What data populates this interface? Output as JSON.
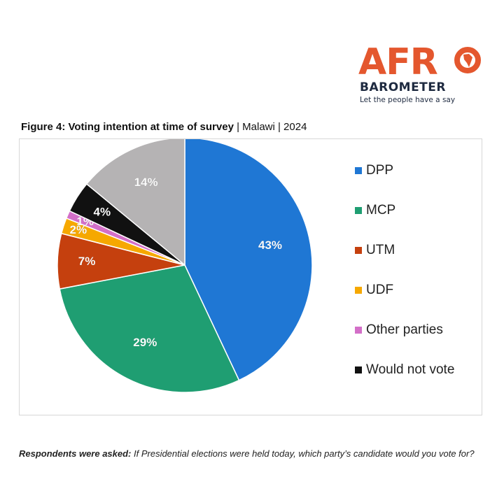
{
  "logo": {
    "main_prefix": "AFR",
    "sub": "BAROMETER",
    "tagline": "Let the people have a say",
    "color": "#e4572e",
    "sub_color": "#1e2a40"
  },
  "figure": {
    "title_bold": "Figure 4: Voting intention at time of survey",
    "title_rest": " | Malawi | 2024"
  },
  "chart_data": {
    "type": "pie",
    "title": "Figure 4: Voting intention at time of survey | Malawi | 2024",
    "legend_position": "right",
    "start": "top, clockwise",
    "slices": [
      {
        "label": "DPP",
        "value": 43,
        "display": "43%",
        "color": "#1f77d4"
      },
      {
        "label": "MCP",
        "value": 29,
        "display": "29%",
        "color": "#1f9e72"
      },
      {
        "label": "UTM",
        "value": 7,
        "display": "7%",
        "color": "#c5400e"
      },
      {
        "label": "UDF",
        "value": 2,
        "display": "2%",
        "color": "#f6a800"
      },
      {
        "label": "Other parties",
        "value": 1,
        "display": "1%",
        "color": "#d36fc8"
      },
      {
        "label": "Would not vote",
        "value": 4,
        "display": "4%",
        "color": "#111111"
      },
      {
        "label": "",
        "value": 14,
        "display": "14%",
        "color": "#b5b3b4"
      }
    ],
    "legend": [
      "DPP",
      "MCP",
      "UTM",
      "UDF",
      "Other parties",
      "Would not vote"
    ]
  },
  "footer": {
    "label": "Respondents were asked:",
    "text": " If Presidential elections were held today, which party’s candidate would you vote for?"
  }
}
